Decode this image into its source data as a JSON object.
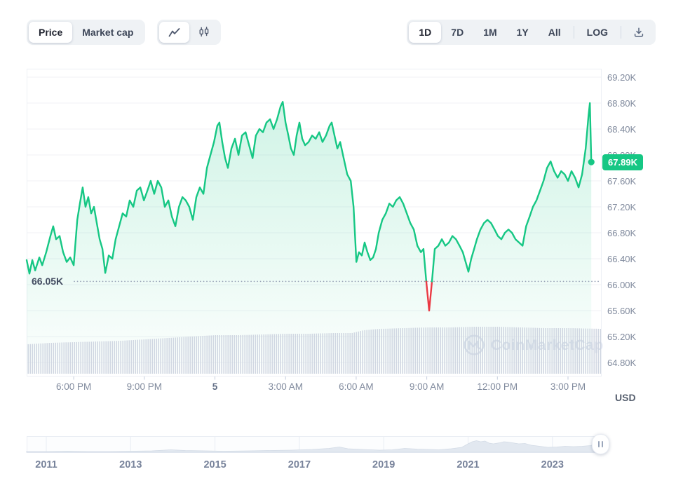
{
  "toolbar": {
    "metric_toggle": {
      "options": [
        "Price",
        "Market cap"
      ],
      "active": "Price"
    },
    "chart_type_toggle": {
      "options": [
        "line",
        "candlestick"
      ],
      "active": "line"
    },
    "range_buttons": [
      "1D",
      "7D",
      "1M",
      "1Y",
      "All"
    ],
    "active_range": "1D",
    "log_label": "LOG",
    "icons": {
      "line_chart": "line-chart-icon",
      "candlestick": "candlestick-icon",
      "download": "download-icon"
    }
  },
  "chart": {
    "current_price_label": "67.89K",
    "open_price_label": "66.05K",
    "unit_label": "USD",
    "watermark_text": "CoinMarketCap",
    "colors": {
      "accent_green": "#16c784",
      "alert_red": "#ea3943",
      "axis_text": "#808a9d",
      "grid": "#f0f2f6",
      "volume_bar": "#ccd3df",
      "watermark": "#dde2ee"
    }
  },
  "chart_data": [
    {
      "type": "area",
      "title": "Price (1D)",
      "y_axis": {
        "unit": "USD",
        "range": [
          64.8,
          69.2
        ],
        "tick_step": 0.4,
        "tick_values": [
          69.2,
          68.8,
          68.4,
          68.0,
          67.6,
          67.2,
          66.8,
          66.4,
          66.0,
          65.6,
          65.2,
          64.8
        ],
        "tick_labels": [
          "69.20K",
          "68.80K",
          "68.40K",
          "68.00K",
          "67.60K",
          "67.20K",
          "66.80K",
          "66.40K",
          "66.00K",
          "65.60K",
          "65.20K",
          "64.80K"
        ]
      },
      "x_axis": {
        "unit": "hours from ~4:00 PM",
        "ticks": [
          {
            "h": 2,
            "label": "6:00 PM"
          },
          {
            "h": 5,
            "label": "9:00 PM"
          },
          {
            "h": 8,
            "label": "5",
            "bold": true
          },
          {
            "h": 11,
            "label": "3:00 AM"
          },
          {
            "h": 14,
            "label": "6:00 AM"
          },
          {
            "h": 17,
            "label": "9:00 AM"
          },
          {
            "h": 20,
            "label": "12:00 PM"
          },
          {
            "h": 23,
            "label": "3:00 PM"
          }
        ]
      },
      "baseline": {
        "value": 66.05,
        "label": "66.05K"
      },
      "last": {
        "value": 67.89,
        "label": "67.89K"
      },
      "grid": "horizontal",
      "legend": "none",
      "colors": {
        "line": "#16c784",
        "below_baseline": "#ea3943",
        "fill_top": "rgba(22,199,132,0.20)",
        "fill_bottom": "rgba(22,199,132,0.01)",
        "volume": "#ccd3df",
        "grid": "#f0f2f6",
        "baseline_dots": "#9aa4b8"
      },
      "points": [
        [
          0,
          66.38
        ],
        [
          0.12,
          66.17
        ],
        [
          0.24,
          66.38
        ],
        [
          0.36,
          66.22
        ],
        [
          0.54,
          66.42
        ],
        [
          0.66,
          66.3
        ],
        [
          0.83,
          66.5
        ],
        [
          1.01,
          66.75
        ],
        [
          1.13,
          66.9
        ],
        [
          1.25,
          66.7
        ],
        [
          1.4,
          66.75
        ],
        [
          1.55,
          66.5
        ],
        [
          1.7,
          66.35
        ],
        [
          1.85,
          66.42
        ],
        [
          2.0,
          66.3
        ],
        [
          2.15,
          67.0
        ],
        [
          2.26,
          67.25
        ],
        [
          2.38,
          67.5
        ],
        [
          2.5,
          67.2
        ],
        [
          2.62,
          67.35
        ],
        [
          2.74,
          67.1
        ],
        [
          2.86,
          67.2
        ],
        [
          2.98,
          66.95
        ],
        [
          3.1,
          66.7
        ],
        [
          3.22,
          66.55
        ],
        [
          3.34,
          66.18
        ],
        [
          3.49,
          66.45
        ],
        [
          3.64,
          66.4
        ],
        [
          3.78,
          66.7
        ],
        [
          3.93,
          66.9
        ],
        [
          4.08,
          67.1
        ],
        [
          4.23,
          67.05
        ],
        [
          4.38,
          67.3
        ],
        [
          4.53,
          67.2
        ],
        [
          4.68,
          67.45
        ],
        [
          4.83,
          67.5
        ],
        [
          4.98,
          67.3
        ],
        [
          5.13,
          67.45
        ],
        [
          5.27,
          67.6
        ],
        [
          5.42,
          67.4
        ],
        [
          5.57,
          67.6
        ],
        [
          5.72,
          67.5
        ],
        [
          5.87,
          67.2
        ],
        [
          6.02,
          67.3
        ],
        [
          6.17,
          67.05
        ],
        [
          6.32,
          66.9
        ],
        [
          6.47,
          67.2
        ],
        [
          6.62,
          67.35
        ],
        [
          6.76,
          67.3
        ],
        [
          6.91,
          67.2
        ],
        [
          7.06,
          67.0
        ],
        [
          7.21,
          67.35
        ],
        [
          7.36,
          67.5
        ],
        [
          7.51,
          67.4
        ],
        [
          7.66,
          67.8
        ],
        [
          7.81,
          68.0
        ],
        [
          7.96,
          68.2
        ],
        [
          8.1,
          68.45
        ],
        [
          8.19,
          68.5
        ],
        [
          8.31,
          68.2
        ],
        [
          8.43,
          67.95
        ],
        [
          8.55,
          67.8
        ],
        [
          8.7,
          68.1
        ],
        [
          8.85,
          68.25
        ],
        [
          9.0,
          68.0
        ],
        [
          9.15,
          68.3
        ],
        [
          9.3,
          68.35
        ],
        [
          9.45,
          68.15
        ],
        [
          9.6,
          67.95
        ],
        [
          9.74,
          68.3
        ],
        [
          9.89,
          68.4
        ],
        [
          10.04,
          68.35
        ],
        [
          10.19,
          68.5
        ],
        [
          10.34,
          68.55
        ],
        [
          10.49,
          68.4
        ],
        [
          10.64,
          68.55
        ],
        [
          10.79,
          68.75
        ],
        [
          10.88,
          68.82
        ],
        [
          11.0,
          68.5
        ],
        [
          11.12,
          68.3
        ],
        [
          11.23,
          68.1
        ],
        [
          11.35,
          68.0
        ],
        [
          11.47,
          68.3
        ],
        [
          11.59,
          68.5
        ],
        [
          11.71,
          68.25
        ],
        [
          11.83,
          68.15
        ],
        [
          11.98,
          68.2
        ],
        [
          12.13,
          68.3
        ],
        [
          12.28,
          68.25
        ],
        [
          12.43,
          68.35
        ],
        [
          12.57,
          68.2
        ],
        [
          12.72,
          68.3
        ],
        [
          12.87,
          68.45
        ],
        [
          12.96,
          68.5
        ],
        [
          13.08,
          68.3
        ],
        [
          13.2,
          68.1
        ],
        [
          13.32,
          68.2
        ],
        [
          13.47,
          67.95
        ],
        [
          13.62,
          67.7
        ],
        [
          13.77,
          67.6
        ],
        [
          13.89,
          67.2
        ],
        [
          14.01,
          66.35
        ],
        [
          14.12,
          66.5
        ],
        [
          14.24,
          66.45
        ],
        [
          14.36,
          66.65
        ],
        [
          14.48,
          66.5
        ],
        [
          14.6,
          66.38
        ],
        [
          14.72,
          66.42
        ],
        [
          14.84,
          66.55
        ],
        [
          14.96,
          66.8
        ],
        [
          15.11,
          67.0
        ],
        [
          15.26,
          67.1
        ],
        [
          15.41,
          67.25
        ],
        [
          15.56,
          67.2
        ],
        [
          15.7,
          67.3
        ],
        [
          15.85,
          67.35
        ],
        [
          16.0,
          67.25
        ],
        [
          16.15,
          67.1
        ],
        [
          16.3,
          66.95
        ],
        [
          16.45,
          66.85
        ],
        [
          16.6,
          66.6
        ],
        [
          16.75,
          66.5
        ],
        [
          16.86,
          66.55
        ],
        [
          16.98,
          66.05
        ],
        [
          17.1,
          65.6
        ],
        [
          17.22,
          66.05
        ],
        [
          17.34,
          66.55
        ],
        [
          17.49,
          66.6
        ],
        [
          17.64,
          66.7
        ],
        [
          17.79,
          66.6
        ],
        [
          17.94,
          66.65
        ],
        [
          18.09,
          66.75
        ],
        [
          18.24,
          66.7
        ],
        [
          18.39,
          66.6
        ],
        [
          18.53,
          66.5
        ],
        [
          18.65,
          66.35
        ],
        [
          18.77,
          66.2
        ],
        [
          18.89,
          66.4
        ],
        [
          19.01,
          66.55
        ],
        [
          19.13,
          66.7
        ],
        [
          19.28,
          66.85
        ],
        [
          19.43,
          66.95
        ],
        [
          19.58,
          67.0
        ],
        [
          19.73,
          66.95
        ],
        [
          19.88,
          66.85
        ],
        [
          20.02,
          66.75
        ],
        [
          20.17,
          66.7
        ],
        [
          20.32,
          66.8
        ],
        [
          20.47,
          66.85
        ],
        [
          20.62,
          66.8
        ],
        [
          20.77,
          66.7
        ],
        [
          20.92,
          66.65
        ],
        [
          21.07,
          66.6
        ],
        [
          21.22,
          66.9
        ],
        [
          21.37,
          67.05
        ],
        [
          21.51,
          67.2
        ],
        [
          21.66,
          67.3
        ],
        [
          21.81,
          67.45
        ],
        [
          21.96,
          67.6
        ],
        [
          22.11,
          67.8
        ],
        [
          22.26,
          67.9
        ],
        [
          22.41,
          67.75
        ],
        [
          22.56,
          67.65
        ],
        [
          22.71,
          67.75
        ],
        [
          22.86,
          67.7
        ],
        [
          23.0,
          67.6
        ],
        [
          23.15,
          67.75
        ],
        [
          23.3,
          67.65
        ],
        [
          23.45,
          67.5
        ],
        [
          23.6,
          67.7
        ],
        [
          23.75,
          68.1
        ],
        [
          23.87,
          68.6
        ],
        [
          23.93,
          68.8
        ],
        [
          23.99,
          67.89
        ]
      ],
      "volume_profile": [
        [
          0,
          42
        ],
        [
          1,
          44
        ],
        [
          2,
          45
        ],
        [
          3,
          46
        ],
        [
          4,
          47
        ],
        [
          5,
          49
        ],
        [
          6,
          51
        ],
        [
          7,
          53
        ],
        [
          8,
          55
        ],
        [
          9,
          55
        ],
        [
          10,
          56
        ],
        [
          11,
          57
        ],
        [
          12,
          57
        ],
        [
          13,
          58
        ],
        [
          13.8,
          58
        ],
        [
          14.3,
          62
        ],
        [
          15,
          64
        ],
        [
          16,
          65
        ],
        [
          17,
          66
        ],
        [
          18,
          66
        ],
        [
          19,
          67
        ],
        [
          20,
          67
        ],
        [
          21,
          66
        ],
        [
          22,
          65
        ],
        [
          23,
          65
        ],
        [
          24.4,
          64
        ]
      ]
    },
    {
      "type": "area",
      "title": "All-time minimap",
      "x_axis": {
        "unit": "year",
        "ticks": [
          2011,
          2013,
          2015,
          2017,
          2019,
          2021,
          2023
        ]
      },
      "colors": {
        "fill": "#e2e8f0",
        "stroke": "#d3dbe6",
        "grid": "#e9edf4",
        "bg": "#fcfdfe"
      },
      "points": [
        [
          2010.53,
          1
        ],
        [
          2011,
          1
        ],
        [
          2011.5,
          1.5
        ],
        [
          2012,
          1
        ],
        [
          2012.5,
          1
        ],
        [
          2013,
          1.5
        ],
        [
          2013.5,
          2
        ],
        [
          2013.95,
          3.5
        ],
        [
          2014.3,
          2.5
        ],
        [
          2014.8,
          2
        ],
        [
          2015.2,
          1.5
        ],
        [
          2015.8,
          2
        ],
        [
          2016.3,
          2.5
        ],
        [
          2016.8,
          3
        ],
        [
          2017.3,
          4
        ],
        [
          2017.7,
          5.5
        ],
        [
          2017.95,
          7.5
        ],
        [
          2018.15,
          5
        ],
        [
          2018.5,
          4
        ],
        [
          2018.9,
          3
        ],
        [
          2019.2,
          3.5
        ],
        [
          2019.5,
          5.5
        ],
        [
          2019.8,
          4.5
        ],
        [
          2020.1,
          4
        ],
        [
          2020.3,
          3.5
        ],
        [
          2020.6,
          5
        ],
        [
          2020.85,
          7
        ],
        [
          2021.0,
          12
        ],
        [
          2021.1,
          15
        ],
        [
          2021.2,
          16.5
        ],
        [
          2021.3,
          15
        ],
        [
          2021.4,
          16
        ],
        [
          2021.5,
          13
        ],
        [
          2021.6,
          12
        ],
        [
          2021.75,
          13.5
        ],
        [
          2021.85,
          15
        ],
        [
          2021.95,
          14.5
        ],
        [
          2022.05,
          13.5
        ],
        [
          2022.2,
          12
        ],
        [
          2022.35,
          12.5
        ],
        [
          2022.5,
          10
        ],
        [
          2022.7,
          8.5
        ],
        [
          2022.9,
          7
        ],
        [
          2023.1,
          7.5
        ],
        [
          2023.3,
          8.5
        ],
        [
          2023.5,
          8
        ],
        [
          2023.7,
          8.5
        ],
        [
          2023.9,
          9.5
        ],
        [
          2024.0,
          11
        ],
        [
          2024.1,
          13.5
        ],
        [
          2024.17,
          14.5
        ]
      ]
    }
  ]
}
